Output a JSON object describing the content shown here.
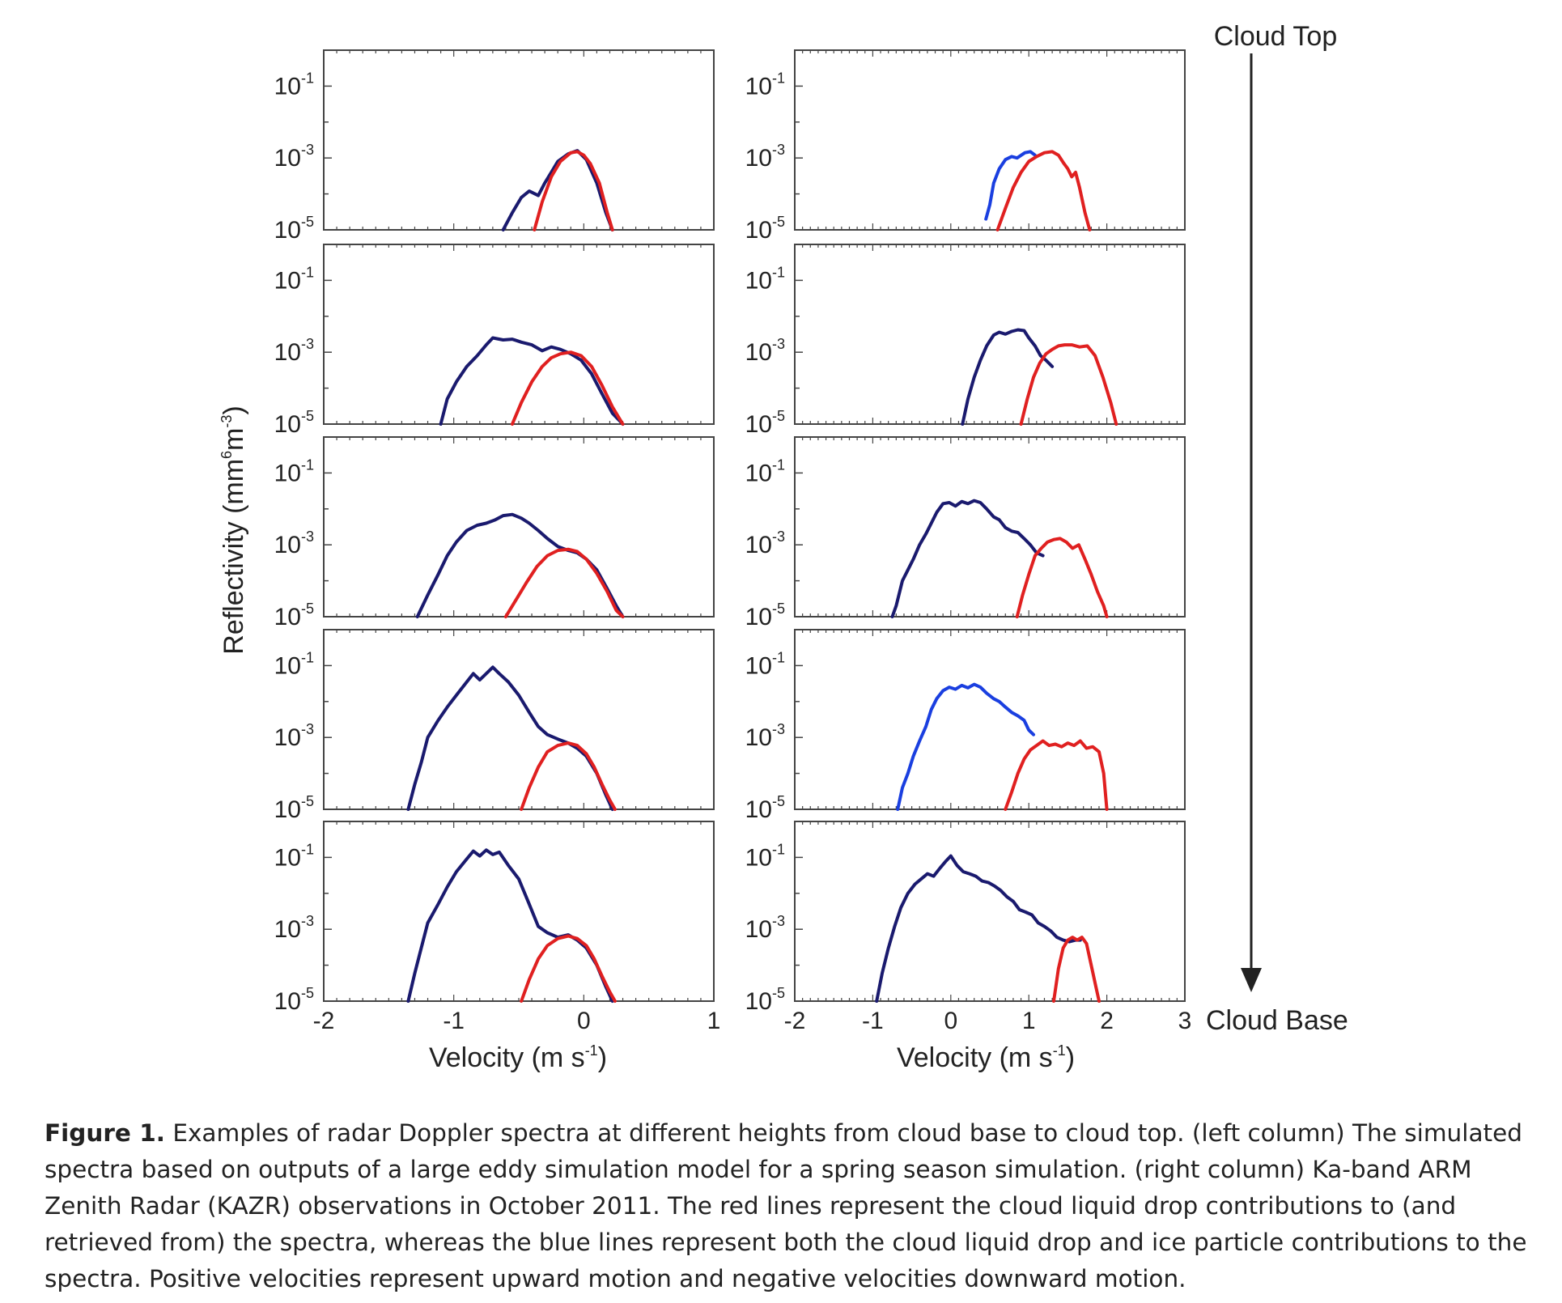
{
  "figure": {
    "right_labels": {
      "top": "Cloud Top",
      "bottom": "Cloud Base"
    },
    "ylabel": {
      "main": "Reflectivity (mm",
      "sup6": "6",
      "mid": "m",
      "supm3": "-3",
      "close": ")"
    },
    "xlabel": {
      "main": "Velocity (m s",
      "sup": "-1",
      "close": ")"
    },
    "ytick_base": "10",
    "ytick_exps": [
      "-1",
      "-3",
      "-5"
    ],
    "left_xticks": [
      "-2",
      "-1",
      "0",
      "1"
    ],
    "right_xticks": [
      "-2",
      "-1",
      "0",
      "1",
      "2",
      "3"
    ]
  },
  "chart_data": [
    {
      "type": "line",
      "column": "left",
      "row": 1,
      "xlim": [
        -2,
        1
      ],
      "ylim": [
        1e-05,
        1
      ],
      "yscale": "log",
      "grid": false,
      "series": [
        {
          "color": "#1a1a6e",
          "x": [
            -0.62,
            -0.55,
            -0.48,
            -0.42,
            -0.35,
            -0.3,
            -0.25,
            -0.2,
            -0.12,
            -0.05,
            0.02,
            0.1,
            0.17,
            0.22
          ],
          "y": [
            1e-05,
            3e-05,
            8e-05,
            0.00012,
            9e-05,
            0.0002,
            0.0004,
            0.0008,
            0.0013,
            0.0016,
            0.0009,
            0.0002,
            3e-05,
            1e-05
          ]
        },
        {
          "color": "#e02020",
          "x": [
            -0.38,
            -0.32,
            -0.25,
            -0.18,
            -0.1,
            -0.05,
            0,
            0.05,
            0.12,
            0.18,
            0.22
          ],
          "y": [
            1e-05,
            6e-05,
            0.0003,
            0.0008,
            0.0014,
            0.0015,
            0.0012,
            0.0007,
            0.0002,
            3e-05,
            1e-05
          ]
        }
      ]
    },
    {
      "type": "line",
      "column": "right",
      "row": 1,
      "xlim": [
        -2,
        3
      ],
      "ylim": [
        1e-05,
        1
      ],
      "yscale": "log",
      "grid": false,
      "series": [
        {
          "color": "#1a3fe0",
          "x": [
            0.45,
            0.5,
            0.55,
            0.62,
            0.7,
            0.78,
            0.85,
            0.95,
            1.02,
            1.08
          ],
          "y": [
            2e-05,
            5e-05,
            0.0002,
            0.0005,
            0.0009,
            0.0011,
            0.001,
            0.0014,
            0.0015,
            0.0012
          ]
        },
        {
          "color": "#e02020",
          "x": [
            0.6,
            0.7,
            0.8,
            0.9,
            1.0,
            1.1,
            1.2,
            1.3,
            1.38,
            1.45,
            1.5,
            1.55,
            1.6,
            1.65,
            1.72,
            1.78
          ],
          "y": [
            1e-05,
            4e-05,
            0.00015,
            0.0004,
            0.0008,
            0.0011,
            0.0014,
            0.0015,
            0.0012,
            0.0007,
            0.0005,
            0.0003,
            0.0004,
            0.00015,
            3e-05,
            1e-05
          ]
        }
      ]
    },
    {
      "type": "line",
      "column": "left",
      "row": 2,
      "xlim": [
        -2,
        1
      ],
      "ylim": [
        1e-05,
        1
      ],
      "yscale": "log",
      "grid": false,
      "series": [
        {
          "color": "#1a1a6e",
          "x": [
            -1.1,
            -1.05,
            -0.98,
            -0.9,
            -0.82,
            -0.75,
            -0.7,
            -0.62,
            -0.55,
            -0.48,
            -0.4,
            -0.32,
            -0.25,
            -0.18,
            -0.1,
            -0.02,
            0.06,
            0.14,
            0.22,
            0.3
          ],
          "y": [
            1e-05,
            5e-05,
            0.00015,
            0.0004,
            0.0008,
            0.0016,
            0.0025,
            0.0022,
            0.0023,
            0.0019,
            0.0016,
            0.0011,
            0.0014,
            0.0012,
            0.0009,
            0.0006,
            0.00025,
            7e-05,
            2e-05,
            1e-05
          ]
        },
        {
          "color": "#e02020",
          "x": [
            -0.55,
            -0.48,
            -0.4,
            -0.32,
            -0.25,
            -0.18,
            -0.1,
            -0.02,
            0.06,
            0.14,
            0.22,
            0.3
          ],
          "y": [
            1e-05,
            4e-05,
            0.00015,
            0.0004,
            0.0007,
            0.0009,
            0.001,
            0.0008,
            0.0004,
            0.00012,
            3e-05,
            1e-05
          ]
        }
      ]
    },
    {
      "type": "line",
      "column": "right",
      "row": 2,
      "xlim": [
        -2,
        3
      ],
      "ylim": [
        1e-05,
        1
      ],
      "yscale": "log",
      "grid": false,
      "series": [
        {
          "color": "#1a1a6e",
          "x": [
            0.15,
            0.22,
            0.3,
            0.38,
            0.46,
            0.55,
            0.62,
            0.7,
            0.78,
            0.86,
            0.94,
            1.0,
            1.08,
            1.15,
            1.22,
            1.3
          ],
          "y": [
            1e-05,
            5e-05,
            0.0002,
            0.0006,
            0.0015,
            0.003,
            0.0036,
            0.0032,
            0.0038,
            0.0042,
            0.004,
            0.0025,
            0.0015,
            0.0008,
            0.0006,
            0.0004
          ]
        },
        {
          "color": "#e02020",
          "x": [
            0.9,
            0.98,
            1.06,
            1.14,
            1.22,
            1.3,
            1.38,
            1.46,
            1.55,
            1.65,
            1.75,
            1.85,
            1.95,
            2.05,
            2.12
          ],
          "y": [
            1e-05,
            5e-05,
            0.0002,
            0.0005,
            0.0009,
            0.0012,
            0.0015,
            0.0016,
            0.0016,
            0.0014,
            0.0015,
            0.0008,
            0.0002,
            4e-05,
            1e-05
          ]
        }
      ]
    },
    {
      "type": "line",
      "column": "left",
      "row": 3,
      "xlim": [
        -2,
        1
      ],
      "ylim": [
        1e-05,
        1
      ],
      "yscale": "log",
      "grid": false,
      "series": [
        {
          "color": "#1a1a6e",
          "x": [
            -1.28,
            -1.2,
            -1.12,
            -1.05,
            -0.98,
            -0.9,
            -0.82,
            -0.75,
            -0.68,
            -0.62,
            -0.55,
            -0.48,
            -0.42,
            -0.35,
            -0.28,
            -0.2,
            -0.12,
            -0.05,
            0.02,
            0.1,
            0.18,
            0.25,
            0.3
          ],
          "y": [
            1e-05,
            4e-05,
            0.00015,
            0.0005,
            0.0012,
            0.0025,
            0.0035,
            0.004,
            0.005,
            0.0065,
            0.007,
            0.0055,
            0.004,
            0.0025,
            0.0015,
            0.0009,
            0.0007,
            0.0006,
            0.0004,
            0.0002,
            6e-05,
            2e-05,
            1e-05
          ]
        },
        {
          "color": "#e02020",
          "x": [
            -0.6,
            -0.52,
            -0.44,
            -0.36,
            -0.28,
            -0.2,
            -0.12,
            -0.05,
            0.02,
            0.1,
            0.18,
            0.25,
            0.3
          ],
          "y": [
            1e-05,
            3e-05,
            9e-05,
            0.00025,
            0.0005,
            0.0007,
            0.00075,
            0.00065,
            0.0004,
            0.00016,
            5e-05,
            1.5e-05,
            1e-05
          ]
        }
      ]
    },
    {
      "type": "line",
      "column": "right",
      "row": 3,
      "xlim": [
        -2,
        3
      ],
      "ylim": [
        1e-05,
        1
      ],
      "yscale": "log",
      "grid": false,
      "series": [
        {
          "color": "#1a1a6e",
          "x": [
            -0.75,
            -0.7,
            -0.62,
            -0.55,
            -0.48,
            -0.4,
            -0.32,
            -0.25,
            -0.18,
            -0.1,
            -0.02,
            0.06,
            0.14,
            0.22,
            0.3,
            0.38,
            0.46,
            0.55,
            0.62,
            0.7,
            0.78,
            0.86,
            0.94,
            1.02,
            1.1,
            1.18
          ],
          "y": [
            1e-05,
            2e-05,
            0.0001,
            0.0002,
            0.0004,
            0.001,
            0.002,
            0.004,
            0.008,
            0.014,
            0.015,
            0.012,
            0.016,
            0.014,
            0.017,
            0.015,
            0.01,
            0.006,
            0.005,
            0.003,
            0.0024,
            0.0022,
            0.0015,
            0.001,
            0.0006,
            0.0005
          ]
        },
        {
          "color": "#e02020",
          "x": [
            0.85,
            0.92,
            1.0,
            1.08,
            1.16,
            1.24,
            1.32,
            1.4,
            1.48,
            1.56,
            1.64,
            1.72,
            1.8,
            1.88,
            1.96,
            2.0
          ],
          "y": [
            1e-05,
            4e-05,
            0.00015,
            0.0005,
            0.0008,
            0.0012,
            0.0014,
            0.0015,
            0.0012,
            0.0008,
            0.001,
            0.0004,
            0.00015,
            5e-05,
            2e-05,
            1e-05
          ]
        }
      ]
    },
    {
      "type": "line",
      "column": "left",
      "row": 4,
      "xlim": [
        -2,
        1
      ],
      "ylim": [
        1e-05,
        1
      ],
      "yscale": "log",
      "grid": false,
      "series": [
        {
          "color": "#1a1a6e",
          "x": [
            -1.35,
            -1.3,
            -1.25,
            -1.2,
            -1.12,
            -1.05,
            -0.98,
            -0.9,
            -0.85,
            -0.8,
            -0.75,
            -0.7,
            -0.65,
            -0.58,
            -0.5,
            -0.42,
            -0.35,
            -0.28,
            -0.2,
            -0.12,
            -0.05,
            0.02,
            0.1,
            0.17,
            0.22
          ],
          "y": [
            1e-05,
            5e-05,
            0.0002,
            0.001,
            0.003,
            0.007,
            0.015,
            0.035,
            0.06,
            0.04,
            0.06,
            0.09,
            0.06,
            0.035,
            0.015,
            0.005,
            0.002,
            0.0012,
            0.0009,
            0.0007,
            0.0005,
            0.0003,
            0.0001,
            2.5e-05,
            1e-05
          ]
        },
        {
          "color": "#e02020",
          "x": [
            -0.48,
            -0.42,
            -0.35,
            -0.28,
            -0.2,
            -0.12,
            -0.05,
            0.02,
            0.08,
            0.14,
            0.2,
            0.24
          ],
          "y": [
            1e-05,
            4e-05,
            0.00015,
            0.0004,
            0.0006,
            0.0007,
            0.0006,
            0.00035,
            0.00015,
            5e-05,
            1.8e-05,
            1e-05
          ]
        }
      ]
    },
    {
      "type": "line",
      "column": "right",
      "row": 4,
      "xlim": [
        -2,
        3
      ],
      "ylim": [
        1e-05,
        1
      ],
      "yscale": "log",
      "grid": false,
      "series": [
        {
          "color": "#1a3fe0",
          "x": [
            -0.68,
            -0.62,
            -0.55,
            -0.48,
            -0.4,
            -0.32,
            -0.25,
            -0.18,
            -0.1,
            -0.02,
            0.06,
            0.14,
            0.22,
            0.3,
            0.38,
            0.46,
            0.55,
            0.62,
            0.7,
            0.78,
            0.86,
            0.94,
            1.0,
            1.06
          ],
          "y": [
            1e-05,
            4e-05,
            0.0001,
            0.0003,
            0.0008,
            0.002,
            0.006,
            0.012,
            0.02,
            0.025,
            0.022,
            0.028,
            0.024,
            0.03,
            0.025,
            0.017,
            0.012,
            0.01,
            0.007,
            0.005,
            0.004,
            0.003,
            0.0016,
            0.0012
          ]
        },
        {
          "color": "#e02020",
          "x": [
            0.7,
            0.78,
            0.86,
            0.94,
            1.02,
            1.1,
            1.18,
            1.26,
            1.34,
            1.42,
            1.5,
            1.58,
            1.66,
            1.74,
            1.82,
            1.9,
            1.96,
            2.0
          ],
          "y": [
            1e-05,
            3e-05,
            0.0001,
            0.00025,
            0.00045,
            0.0006,
            0.0008,
            0.0006,
            0.00065,
            0.00055,
            0.0007,
            0.0006,
            0.0008,
            0.0005,
            0.00055,
            0.0004,
            0.0001,
            1e-05
          ]
        }
      ]
    },
    {
      "type": "line",
      "column": "left",
      "row": 5,
      "xlim": [
        -2,
        1
      ],
      "ylim": [
        1e-05,
        1
      ],
      "yscale": "log",
      "grid": false,
      "series": [
        {
          "color": "#1a1a6e",
          "x": [
            -1.35,
            -1.3,
            -1.25,
            -1.2,
            -1.12,
            -1.05,
            -0.98,
            -0.9,
            -0.85,
            -0.8,
            -0.75,
            -0.7,
            -0.65,
            -0.58,
            -0.5,
            -0.42,
            -0.35,
            -0.28,
            -0.2,
            -0.12,
            -0.05,
            0.02,
            0.1,
            0.17,
            0.22
          ],
          "y": [
            1e-05,
            6e-05,
            0.0003,
            0.0015,
            0.005,
            0.015,
            0.04,
            0.09,
            0.15,
            0.11,
            0.16,
            0.12,
            0.14,
            0.06,
            0.025,
            0.005,
            0.0012,
            0.0008,
            0.0006,
            0.0007,
            0.0005,
            0.0003,
            0.0001,
            2.5e-05,
            1e-05
          ]
        },
        {
          "color": "#e02020",
          "x": [
            -0.48,
            -0.42,
            -0.35,
            -0.28,
            -0.2,
            -0.12,
            -0.05,
            0.02,
            0.08,
            0.14,
            0.2,
            0.24
          ],
          "y": [
            1e-05,
            4e-05,
            0.00015,
            0.00035,
            0.00055,
            0.00065,
            0.00055,
            0.00035,
            0.00015,
            5e-05,
            1.8e-05,
            1e-05
          ]
        }
      ]
    },
    {
      "type": "line",
      "column": "right",
      "row": 5,
      "xlim": [
        -2,
        3
      ],
      "ylim": [
        1e-05,
        1
      ],
      "yscale": "log",
      "grid": false,
      "series": [
        {
          "color": "#1a1a6e",
          "x": [
            -0.95,
            -0.88,
            -0.8,
            -0.72,
            -0.64,
            -0.55,
            -0.46,
            -0.38,
            -0.3,
            -0.22,
            -0.14,
            -0.06,
            0.0,
            0.08,
            0.16,
            0.24,
            0.32,
            0.4,
            0.48,
            0.56,
            0.64,
            0.72,
            0.8,
            0.88,
            0.96,
            1.04,
            1.12,
            1.2,
            1.28,
            1.36,
            1.44,
            1.52,
            1.6,
            1.66
          ],
          "y": [
            1e-05,
            6e-05,
            0.0003,
            0.0012,
            0.004,
            0.01,
            0.018,
            0.025,
            0.035,
            0.03,
            0.05,
            0.08,
            0.11,
            0.06,
            0.04,
            0.035,
            0.03,
            0.022,
            0.02,
            0.016,
            0.012,
            0.008,
            0.006,
            0.0035,
            0.003,
            0.0025,
            0.0015,
            0.0012,
            0.0009,
            0.0006,
            0.0005,
            0.00045,
            0.0005,
            0.0005
          ]
        },
        {
          "color": "#e02020",
          "x": [
            1.32,
            1.38,
            1.44,
            1.5,
            1.56,
            1.62,
            1.68,
            1.74,
            1.8,
            1.86,
            1.9
          ],
          "y": [
            1e-05,
            8e-05,
            0.0003,
            0.0005,
            0.0006,
            0.0005,
            0.0006,
            0.0004,
            0.0001,
            2.5e-05,
            1e-05
          ]
        }
      ]
    }
  ],
  "caption": {
    "label": "Figure 1.",
    "text": " Examples of radar Doppler spectra at different heights from cloud base to cloud top. (left column) The simulated spectra based on outputs of a large eddy simulation model for a spring season simulation. (right column) Ka-band ARM Zenith Radar (KAZR) observations in October 2011. The red lines represent the cloud liquid drop contributions to (and retrieved from) the spectra, whereas the blue lines represent both the cloud liquid drop and ice particle contributions to the spectra. Positive velocities represent upward motion and negative velocities downward motion."
  }
}
